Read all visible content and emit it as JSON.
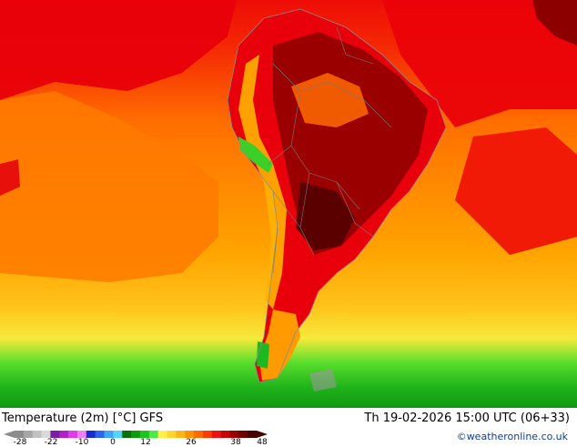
{
  "header": {
    "title": "Temperature (2m) [°C] GFS",
    "datetime": "Th 19-02-2026 15:00 UTC (06+33)",
    "credit": "©weatheronline.co.uk"
  },
  "legend": {
    "ticks": [
      "-28",
      "-22",
      "-10",
      "0",
      "12",
      "26",
      "38",
      "48"
    ],
    "colors": [
      "#8c8c8c",
      "#a6a6a6",
      "#c2c2c2",
      "#dadada",
      "#7a1ea1",
      "#b01fc9",
      "#df3ce8",
      "#f07ef5",
      "#1a2ad0",
      "#2e64f0",
      "#3fa5f8",
      "#53d4fa",
      "#087208",
      "#0d9b0d",
      "#1ec31e",
      "#4ae94a",
      "#fff04a",
      "#ffd52e",
      "#ffb41c",
      "#ff9200",
      "#ff6a00",
      "#ff3c00",
      "#ee1010",
      "#c80606",
      "#9c0202",
      "#6e0000",
      "#470000"
    ]
  },
  "map": {
    "ocean_color": "#ff8a00",
    "land_color": "#e8000a",
    "border_color": "#8c8c8c"
  }
}
